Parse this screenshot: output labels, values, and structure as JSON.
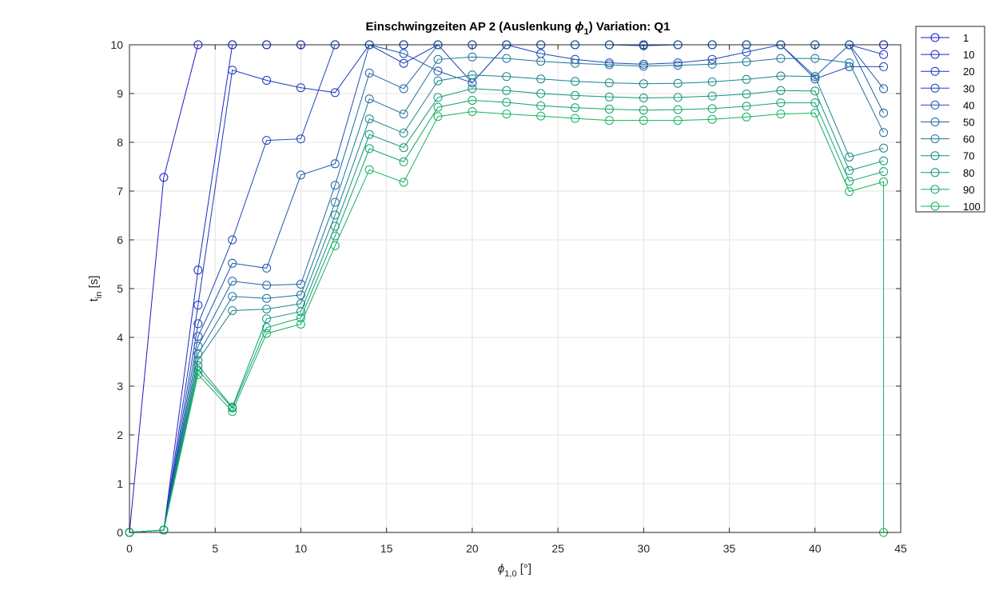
{
  "chart_data": {
    "type": "line",
    "title_prefix": "Einschwingzeiten AP 2 (Auslenkung ",
    "title_symbol": "ϕ",
    "title_sub": "1",
    "title_suffix": ")  Variation: Q1",
    "xlabel_symbol": "ϕ",
    "xlabel_sub": "1,0",
    "xlabel_unit": " [°]",
    "ylabel_main": "t",
    "ylabel_sub": "in",
    "ylabel_unit": " [s]",
    "xlim": [
      0,
      45
    ],
    "ylim": [
      0,
      10
    ],
    "xticks": [
      0,
      5,
      10,
      15,
      20,
      25,
      30,
      35,
      40,
      45
    ],
    "yticks": [
      0,
      1,
      2,
      3,
      4,
      5,
      6,
      7,
      8,
      9,
      10
    ],
    "grid": true,
    "legend_position": "outside-top-right",
    "marker": "circle-open",
    "x": [
      0,
      2,
      4,
      6,
      8,
      10,
      12,
      14,
      16,
      18,
      20,
      22,
      24,
      26,
      28,
      30,
      32,
      34,
      36,
      38,
      40,
      42,
      44
    ],
    "series": [
      {
        "name": "1",
        "color": "#1a1ac8",
        "values": [
          0,
          7.28,
          10,
          10,
          10,
          10,
          10,
          10,
          10,
          10,
          10,
          10,
          10,
          10,
          10,
          10,
          10,
          10,
          10,
          10,
          10,
          10,
          10
        ]
      },
      {
        "name": "10",
        "color": "#1c28c4",
        "values": [
          0,
          0.05,
          5.38,
          10,
          10,
          10,
          10,
          10,
          10,
          10,
          10,
          10,
          10,
          10,
          10,
          10,
          10,
          10,
          10,
          10,
          10,
          10,
          10
        ]
      },
      {
        "name": "20",
        "color": "#1e36bf",
        "values": [
          0,
          0.05,
          4.66,
          9.48,
          9.27,
          9.12,
          9.02,
          10,
          9.62,
          10,
          10,
          10,
          10,
          10,
          10,
          10,
          10,
          10,
          10,
          10,
          10,
          10,
          9.8
        ]
      },
      {
        "name": "30",
        "color": "#1f45b8",
        "values": [
          0,
          0.05,
          4.28,
          6.0,
          8.04,
          8.07,
          10,
          10,
          10,
          10,
          9.22,
          10,
          9.82,
          9.7,
          9.63,
          9.6,
          9.63,
          9.7,
          9.85,
          10,
          9.3,
          9.55,
          9.55
        ]
      },
      {
        "name": "40",
        "color": "#1f55b0",
        "values": [
          0,
          0.05,
          4.02,
          5.52,
          5.42,
          7.33,
          7.56,
          10,
          9.82,
          9.46,
          9.22,
          10,
          10,
          10,
          10,
          9.98,
          10,
          10,
          10,
          10,
          9.35,
          10,
          9.1
        ]
      },
      {
        "name": "50",
        "color": "#1f65a6",
        "values": [
          0,
          0.05,
          3.82,
          5.15,
          5.07,
          5.09,
          7.12,
          9.42,
          9.1,
          10,
          10,
          10,
          10,
          10,
          10,
          10,
          10,
          10,
          10,
          10,
          10,
          10,
          8.6
        ]
      },
      {
        "name": "60",
        "color": "#1c759a",
        "values": [
          0,
          0.05,
          3.66,
          4.84,
          4.8,
          4.87,
          6.77,
          8.89,
          8.58,
          9.7,
          9.75,
          9.72,
          9.66,
          9.62,
          9.59,
          9.56,
          9.58,
          9.6,
          9.65,
          9.72,
          9.72,
          9.63,
          8.2
        ]
      },
      {
        "name": "70",
        "color": "#17858c",
        "values": [
          0,
          0.05,
          3.53,
          4.55,
          4.58,
          4.69,
          6.51,
          8.48,
          8.19,
          9.26,
          9.38,
          9.35,
          9.3,
          9.25,
          9.22,
          9.2,
          9.21,
          9.24,
          9.29,
          9.36,
          9.35,
          7.7,
          7.88
        ]
      },
      {
        "name": "80",
        "color": "#13957c",
        "values": [
          0,
          0.05,
          3.42,
          2.57,
          4.38,
          4.53,
          6.28,
          8.16,
          7.89,
          8.92,
          9.1,
          9.06,
          9.0,
          8.96,
          8.93,
          8.91,
          8.92,
          8.95,
          8.99,
          9.06,
          9.05,
          7.42,
          7.62
        ]
      },
      {
        "name": "90",
        "color": "#10a46c",
        "values": [
          0,
          0.05,
          3.33,
          2.55,
          4.2,
          4.4,
          6.08,
          7.87,
          7.6,
          8.72,
          8.86,
          8.82,
          8.75,
          8.71,
          8.68,
          8.66,
          8.67,
          8.69,
          8.74,
          8.81,
          8.81,
          7.2,
          7.4
        ]
      },
      {
        "name": "100",
        "color": "#10b45c",
        "values": [
          0,
          0.05,
          3.24,
          2.48,
          4.08,
          4.27,
          5.88,
          7.44,
          7.18,
          8.53,
          8.63,
          8.58,
          8.54,
          8.49,
          8.45,
          8.45,
          8.45,
          8.47,
          8.52,
          8.58,
          8.6,
          6.99,
          7.19
        ]
      }
    ],
    "final_drop": {
      "series": "100",
      "x": 44,
      "y": 0
    }
  }
}
